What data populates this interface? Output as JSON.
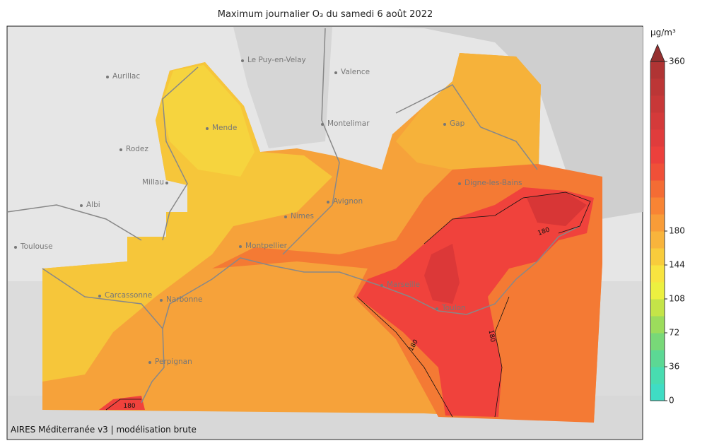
{
  "title": "Maximum journalier O₃ du samedi 6 août 2022",
  "footer": "AIRES Méditerranée v3 | modélisation brute",
  "cities": [
    "Aurillac",
    "Le Puy-en-Velay",
    "Valence",
    "Rodez",
    "Mende",
    "Montelimar",
    "Gap",
    "Millau",
    "Albi",
    "Nimes",
    "Avignon",
    "Digne-les-Bains",
    "Toulouse",
    "Montpellier",
    "Carcassonne",
    "Narbonne",
    "Marseille",
    "Toulon",
    "Perpignan"
  ],
  "contour_labels": [
    180,
    180,
    180,
    180
  ],
  "colorbar": {
    "label": "µg/m³",
    "lim": [
      0,
      360
    ],
    "ticks": [
      0,
      36,
      72,
      108,
      144,
      180,
      360
    ],
    "colors": [
      "#3fdcc4",
      "#48dcb0",
      "#5cd894",
      "#78d878",
      "#9cdc5c",
      "#c4e448",
      "#ecf040",
      "#f8e440",
      "#f8cc3c",
      "#f8b43c",
      "#f89c38",
      "#f88434",
      "#f46c34",
      "#f05038",
      "#ec403c",
      "#e03c3c",
      "#d43a3a",
      "#c83838",
      "#bc3636",
      "#b03434"
    ]
  }
}
